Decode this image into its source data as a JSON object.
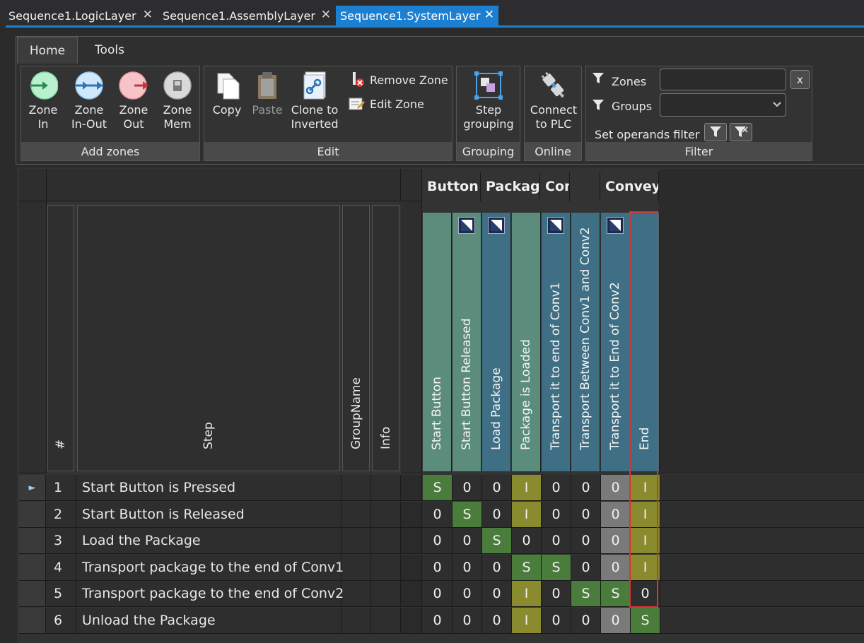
{
  "tabs": [
    {
      "label": "Sequence1.LogicLayer",
      "close": "✕"
    },
    {
      "label": "Sequence1.AssemblyLayer",
      "close": "✕"
    },
    {
      "label": "Sequence1.SystemLayer",
      "close": "✕"
    }
  ],
  "ribbon": {
    "tabs": [
      "Home",
      "Tools"
    ],
    "add_zones": {
      "label": "Add zones",
      "buttons": [
        {
          "line1": "Zone",
          "line2": "In"
        },
        {
          "line1": "Zone",
          "line2": "In-Out"
        },
        {
          "line1": "Zone",
          "line2": "Out"
        },
        {
          "line1": "Zone",
          "line2": "Mem"
        }
      ]
    },
    "edit": {
      "label": "Edit",
      "copy": "Copy",
      "paste": "Paste",
      "clone_line1": "Clone to",
      "clone_line2": "Inverted",
      "remove_zone": "Remove Zone",
      "edit_zone": "Edit Zone"
    },
    "grouping": {
      "label": "Grouping",
      "line1": "Step",
      "line2": "grouping"
    },
    "online": {
      "label": "Online",
      "line1": "Connect",
      "line2": "to PLC"
    },
    "filter": {
      "label": "Filter",
      "zones": "Zones",
      "groups": "Groups",
      "clear": "x",
      "set_operands": "Set operands filter"
    }
  },
  "grid": {
    "columns": {
      "num": "#",
      "step": "Step",
      "group": "GroupName",
      "info": "Info"
    },
    "groups": [
      "Button",
      "Package",
      "Conv",
      "",
      "Convey"
    ],
    "zones": [
      {
        "name": "Start Button",
        "color": "#5b8c7c",
        "icon": false
      },
      {
        "name": "Start Button Released",
        "color": "#5b8c7c",
        "icon": true
      },
      {
        "name": "Load Package",
        "color": "#3f6f84",
        "icon": true
      },
      {
        "name": "Package is Loaded",
        "color": "#5b8c7c",
        "icon": false
      },
      {
        "name": "Transport it to end of Conv1",
        "color": "#3f6f84",
        "icon": true
      },
      {
        "name": "Transport Between Conv1 and Conv2",
        "color": "#3f6f84",
        "icon": false
      },
      {
        "name": "Transport it to End of Conv2",
        "color": "#3f6f84",
        "icon": true
      },
      {
        "name": "End",
        "color": "#3f6f84",
        "icon": false
      }
    ],
    "rows": [
      {
        "num": "1",
        "step": "Start Button is Pressed",
        "marker": "►",
        "values": [
          "S",
          "0",
          "0",
          "I",
          "0",
          "0",
          "0",
          "I"
        ]
      },
      {
        "num": "2",
        "step": "Start Button is Released",
        "marker": "",
        "values": [
          "0",
          "S",
          "0",
          "I",
          "0",
          "0",
          "0",
          "I"
        ]
      },
      {
        "num": "3",
        "step": "Load the Package",
        "marker": "",
        "values": [
          "0",
          "0",
          "S",
          "0",
          "0",
          "0",
          "0",
          "I"
        ]
      },
      {
        "num": "4",
        "step": "Transport package to the end of Conv1",
        "marker": "",
        "values": [
          "0",
          "0",
          "0",
          "S",
          "S",
          "0",
          "0",
          "I"
        ]
      },
      {
        "num": "5",
        "step": "Transport package to the end of Conv2",
        "marker": "",
        "values": [
          "0",
          "0",
          "0",
          "I",
          "0",
          "S",
          "S",
          "0"
        ]
      },
      {
        "num": "6",
        "step": "Unload the Package",
        "marker": "",
        "values": [
          "0",
          "0",
          "0",
          "I",
          "0",
          "0",
          "0",
          "S"
        ]
      }
    ]
  },
  "colors": {
    "accent": "#1c7fd0",
    "set": "#4a7d3c",
    "inactive": "#8a8a2e",
    "zero": "#2e2e2e",
    "grey": "#7a7a7a",
    "highlight": "#e03030"
  }
}
